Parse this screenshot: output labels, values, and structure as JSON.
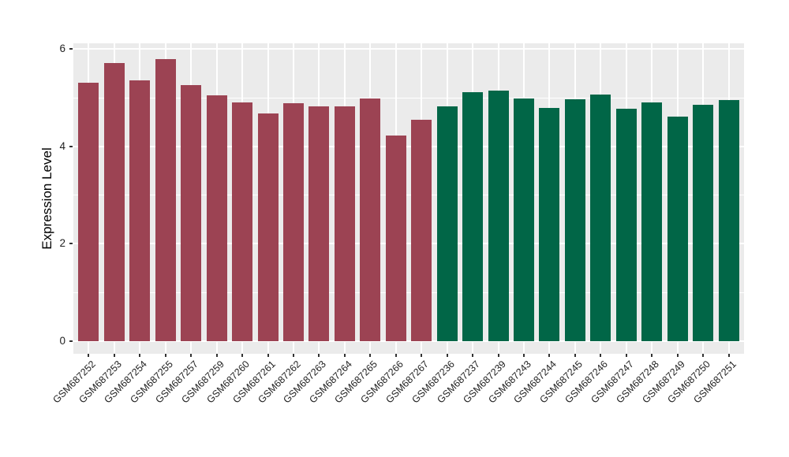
{
  "chart_data": {
    "type": "bar",
    "title": "",
    "xlabel": "",
    "ylabel": "Expression Level",
    "ylim": [
      -0.25,
      6.15
    ],
    "yticks_major": [
      0,
      2,
      4,
      6
    ],
    "yticks_minor": [
      1,
      3,
      5
    ],
    "grid": true,
    "legend_position": "none",
    "panel_background": "#EBEBEB",
    "gridline_color": "#FFFFFF",
    "tick_mark_color": "#333333",
    "axis_text_color": "#1F1F1F",
    "group_colors": {
      "red": "#9C4353",
      "green": "#016647"
    },
    "bars": [
      {
        "label": "GSM687252",
        "value": 5.3,
        "group": "red"
      },
      {
        "label": "GSM687253",
        "value": 5.72,
        "group": "red"
      },
      {
        "label": "GSM687254",
        "value": 5.36,
        "group": "red"
      },
      {
        "label": "GSM687255",
        "value": 5.79,
        "group": "red"
      },
      {
        "label": "GSM687257",
        "value": 5.26,
        "group": "red"
      },
      {
        "label": "GSM687259",
        "value": 5.05,
        "group": "red"
      },
      {
        "label": "GSM687260",
        "value": 4.9,
        "group": "red"
      },
      {
        "label": "GSM687261",
        "value": 4.67,
        "group": "red"
      },
      {
        "label": "GSM687262",
        "value": 4.88,
        "group": "red"
      },
      {
        "label": "GSM687263",
        "value": 4.82,
        "group": "red"
      },
      {
        "label": "GSM687264",
        "value": 4.83,
        "group": "red"
      },
      {
        "label": "GSM687265",
        "value": 4.99,
        "group": "red"
      },
      {
        "label": "GSM687266",
        "value": 4.22,
        "group": "red"
      },
      {
        "label": "GSM687267",
        "value": 4.55,
        "group": "red"
      },
      {
        "label": "GSM687236",
        "value": 4.82,
        "group": "green"
      },
      {
        "label": "GSM687237",
        "value": 5.11,
        "group": "green"
      },
      {
        "label": "GSM687239",
        "value": 5.14,
        "group": "green"
      },
      {
        "label": "GSM687243",
        "value": 4.99,
        "group": "green"
      },
      {
        "label": "GSM687244",
        "value": 4.79,
        "group": "green"
      },
      {
        "label": "GSM687245",
        "value": 4.97,
        "group": "green"
      },
      {
        "label": "GSM687246",
        "value": 5.06,
        "group": "green"
      },
      {
        "label": "GSM687247",
        "value": 4.77,
        "group": "green"
      },
      {
        "label": "GSM687248",
        "value": 4.9,
        "group": "green"
      },
      {
        "label": "GSM687249",
        "value": 4.61,
        "group": "green"
      },
      {
        "label": "GSM687250",
        "value": 4.86,
        "group": "green"
      },
      {
        "label": "GSM687251",
        "value": 4.95,
        "group": "green"
      }
    ]
  }
}
